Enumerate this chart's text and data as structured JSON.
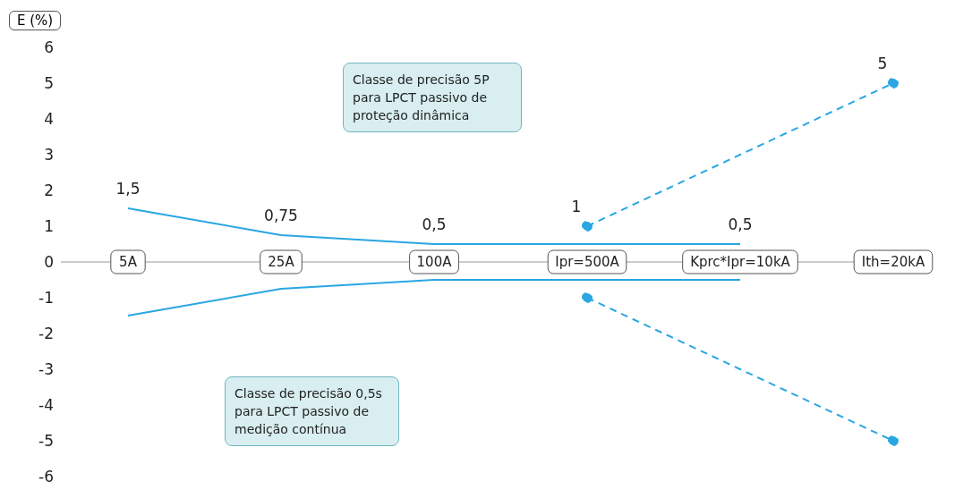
{
  "chart_data": {
    "type": "line",
    "ylabel": "E (%)",
    "categories": [
      "5A",
      "25A",
      "100A",
      "Ipr=500A",
      "Kprc*Ipr=10kA",
      "Ith=20kA"
    ],
    "ylim": [
      -6,
      6
    ],
    "yticks": [
      6,
      5,
      4,
      3,
      2,
      1,
      0,
      -1,
      -2,
      -3,
      -4,
      -5,
      -6
    ],
    "grid": false,
    "series": [
      {
        "color": "#2aa6e2",
        "values": [
          1.5,
          0.75,
          0.5,
          0.5,
          0.5,
          null
        ],
        "line_style": "solid",
        "marker": "none",
        "value_labels": [
          "1,5",
          "0,75",
          "0,5",
          null,
          "0,5",
          null
        ]
      },
      {
        "color": "#2aa6e2",
        "values": [
          -1.5,
          -0.75,
          -0.5,
          -0.5,
          -0.5,
          null
        ],
        "line_style": "solid",
        "marker": "none"
      },
      {
        "color": "#2aa6e2",
        "x": [
          "Ipr=500A",
          "Ith=20kA"
        ],
        "values": [
          1,
          5
        ],
        "line_style": "dashed",
        "marker": "circle",
        "value_labels": [
          "1",
          "5"
        ]
      },
      {
        "color": "#2aa6e2",
        "x": [
          "Ipr=500A",
          "Ith=20kA"
        ],
        "values": [
          -1,
          -5
        ],
        "line_style": "dashed",
        "marker": "circle"
      }
    ],
    "annotations": [
      "Classe de precisão 5P para LPCT passivo de proteção dinâmica",
      "Classe de precisão 0,5s para LPCT passivo de medição contínua"
    ]
  }
}
